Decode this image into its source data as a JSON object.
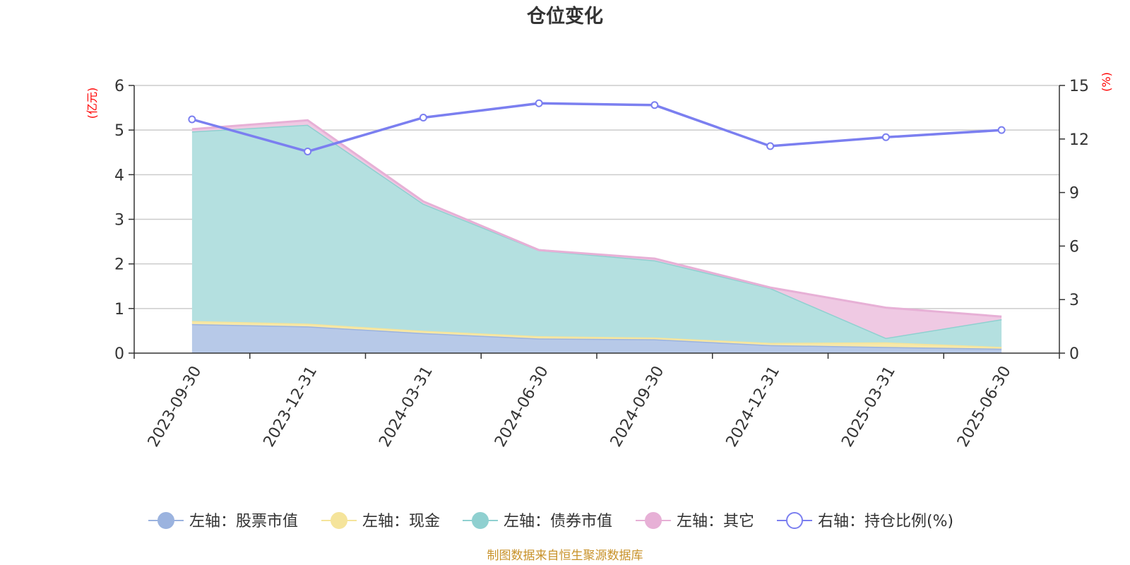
{
  "chart_data": {
    "type": "area",
    "title": "仓位变化",
    "categories": [
      "2023-09-30",
      "2023-12-31",
      "2024-03-31",
      "2024-06-30",
      "2024-09-30",
      "2024-12-31",
      "2025-03-31",
      "2025-06-30"
    ],
    "left_axis": {
      "unit": "(亿元)",
      "ylim": [
        0,
        6
      ],
      "ticks": [
        "0",
        "1",
        "2",
        "3",
        "4",
        "5",
        "6"
      ]
    },
    "right_axis": {
      "unit": "(%)",
      "ylim": [
        0,
        15
      ],
      "ticks": [
        "0",
        "3",
        "6",
        "9",
        "12",
        "15"
      ]
    },
    "stacked_series": [
      {
        "name": "左轴：股票市值",
        "color": "#9bb3df",
        "fill": "#b7c9e8",
        "values": [
          0.65,
          0.6,
          0.45,
          0.33,
          0.31,
          0.18,
          0.14,
          0.1
        ]
      },
      {
        "name": "左轴：现金",
        "color": "#f5e49b",
        "fill": "#f7e8a8",
        "values": [
          0.07,
          0.06,
          0.05,
          0.05,
          0.04,
          0.05,
          0.1,
          0.04
        ]
      },
      {
        "name": "左轴：债券市值",
        "color": "#8fd0d0",
        "fill": "#b4e0e0",
        "values": [
          4.25,
          4.46,
          2.85,
          1.93,
          1.73,
          1.23,
          0.1,
          0.62
        ]
      },
      {
        "name": "左轴：其它",
        "color": "#e7b0d6",
        "fill": "#efc9e3",
        "values": [
          0.05,
          0.1,
          0.05,
          0.0,
          0.04,
          0.01,
          0.68,
          0.06
        ]
      }
    ],
    "line_series": {
      "name": "右轴：持仓比例(%)",
      "color": "#7b7ff0",
      "values": [
        13.1,
        11.3,
        13.2,
        14.0,
        13.9,
        11.6,
        12.1,
        12.5
      ]
    },
    "grid": true,
    "legend_position": "bottom"
  },
  "footer": "制图数据来自恒生聚源数据库"
}
